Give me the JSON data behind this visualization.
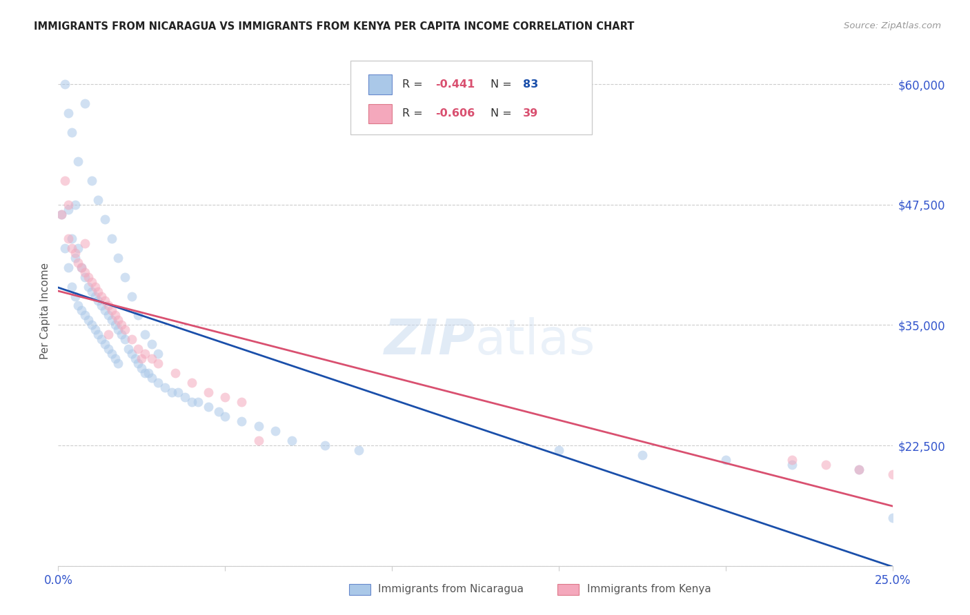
{
  "title": "IMMIGRANTS FROM NICARAGUA VS IMMIGRANTS FROM KENYA PER CAPITA INCOME CORRELATION CHART",
  "source": "Source: ZipAtlas.com",
  "ylabel": "Per Capita Income",
  "yticks": [
    10000,
    22500,
    35000,
    47500,
    60000
  ],
  "ytick_labels": [
    "",
    "$22,500",
    "$35,000",
    "$47,500",
    "$60,000"
  ],
  "xlim": [
    0.0,
    0.25
  ],
  "ylim": [
    10000,
    63000
  ],
  "legend_r1": "R = -0.441",
  "legend_n1": "N = 83",
  "legend_r2": "R = -0.606",
  "legend_n2": "N = 39",
  "label1": "Immigrants from Nicaragua",
  "label2": "Immigrants from Kenya",
  "color1": "#aac8e8",
  "color2": "#f4a8bc",
  "line_color1": "#1a4faa",
  "line_color2": "#d95070",
  "title_color": "#222222",
  "source_color": "#999999",
  "ytick_color": "#3355cc",
  "xtick_color": "#3355cc",
  "scatter_alpha": 0.55,
  "scatter_size": 100,
  "nicaragua_x": [
    0.001,
    0.002,
    0.003,
    0.003,
    0.004,
    0.004,
    0.005,
    0.005,
    0.006,
    0.006,
    0.007,
    0.007,
    0.008,
    0.008,
    0.009,
    0.009,
    0.01,
    0.01,
    0.011,
    0.011,
    0.012,
    0.012,
    0.013,
    0.013,
    0.014,
    0.014,
    0.015,
    0.015,
    0.016,
    0.016,
    0.017,
    0.017,
    0.018,
    0.018,
    0.019,
    0.02,
    0.021,
    0.022,
    0.023,
    0.024,
    0.025,
    0.026,
    0.027,
    0.028,
    0.03,
    0.032,
    0.034,
    0.036,
    0.038,
    0.04,
    0.042,
    0.045,
    0.048,
    0.05,
    0.055,
    0.06,
    0.065,
    0.07,
    0.08,
    0.09,
    0.004,
    0.006,
    0.008,
    0.01,
    0.012,
    0.014,
    0.016,
    0.018,
    0.02,
    0.022,
    0.024,
    0.026,
    0.028,
    0.03,
    0.15,
    0.175,
    0.2,
    0.22,
    0.24,
    0.25,
    0.002,
    0.003,
    0.005
  ],
  "nicaragua_y": [
    46500,
    43000,
    47000,
    41000,
    44000,
    39000,
    42000,
    38000,
    43000,
    37000,
    41000,
    36500,
    40000,
    36000,
    39000,
    35500,
    38500,
    35000,
    38000,
    34500,
    37500,
    34000,
    37000,
    33500,
    36500,
    33000,
    36000,
    32500,
    35500,
    32000,
    35000,
    31500,
    34500,
    31000,
    34000,
    33500,
    32500,
    32000,
    31500,
    31000,
    30500,
    30000,
    30000,
    29500,
    29000,
    28500,
    28000,
    28000,
    27500,
    27000,
    27000,
    26500,
    26000,
    25500,
    25000,
    24500,
    24000,
    23000,
    22500,
    22000,
    55000,
    52000,
    58000,
    50000,
    48000,
    46000,
    44000,
    42000,
    40000,
    38000,
    36000,
    34000,
    33000,
    32000,
    22000,
    21500,
    21000,
    20500,
    20000,
    15000,
    60000,
    57000,
    47500
  ],
  "kenya_x": [
    0.001,
    0.002,
    0.003,
    0.004,
    0.005,
    0.006,
    0.007,
    0.008,
    0.009,
    0.01,
    0.011,
    0.012,
    0.013,
    0.014,
    0.015,
    0.016,
    0.017,
    0.018,
    0.019,
    0.02,
    0.022,
    0.024,
    0.026,
    0.028,
    0.03,
    0.035,
    0.04,
    0.045,
    0.05,
    0.055,
    0.003,
    0.008,
    0.015,
    0.025,
    0.06,
    0.22,
    0.23,
    0.24,
    0.25
  ],
  "kenya_y": [
    46500,
    50000,
    44000,
    43000,
    42500,
    41500,
    41000,
    40500,
    40000,
    39500,
    39000,
    38500,
    38000,
    37500,
    37000,
    36500,
    36000,
    35500,
    35000,
    34500,
    33500,
    32500,
    32000,
    31500,
    31000,
    30000,
    29000,
    28000,
    27500,
    27000,
    47500,
    43500,
    34000,
    31500,
    23000,
    21000,
    20500,
    20000,
    19500
  ]
}
